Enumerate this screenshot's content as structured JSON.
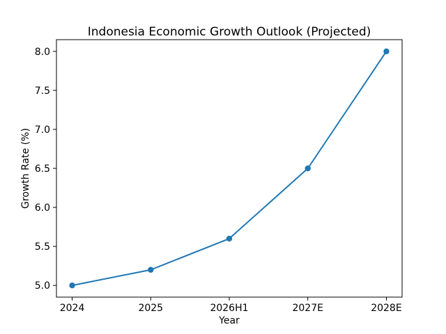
{
  "chart_data": {
    "type": "line",
    "title": "Indonesia Economic Growth Outlook (Projected)",
    "xlabel": "Year",
    "ylabel": "Growth Rate (%)",
    "categories": [
      "2024",
      "2025",
      "2026H1",
      "2027E",
      "2028E"
    ],
    "series": [
      {
        "name": "Growth Rate (%)",
        "values": [
          5.0,
          5.2,
          5.6,
          6.5,
          8.0
        ]
      }
    ],
    "yticks": [
      5.0,
      5.5,
      6.0,
      6.5,
      7.0,
      7.5,
      8.0
    ],
    "ylim": [
      4.85,
      8.15
    ],
    "grid": false,
    "legend": "none",
    "line_color": "#1f77b4",
    "marker": "circle",
    "axis_color": "#000000",
    "background_color": "#ffffff"
  }
}
